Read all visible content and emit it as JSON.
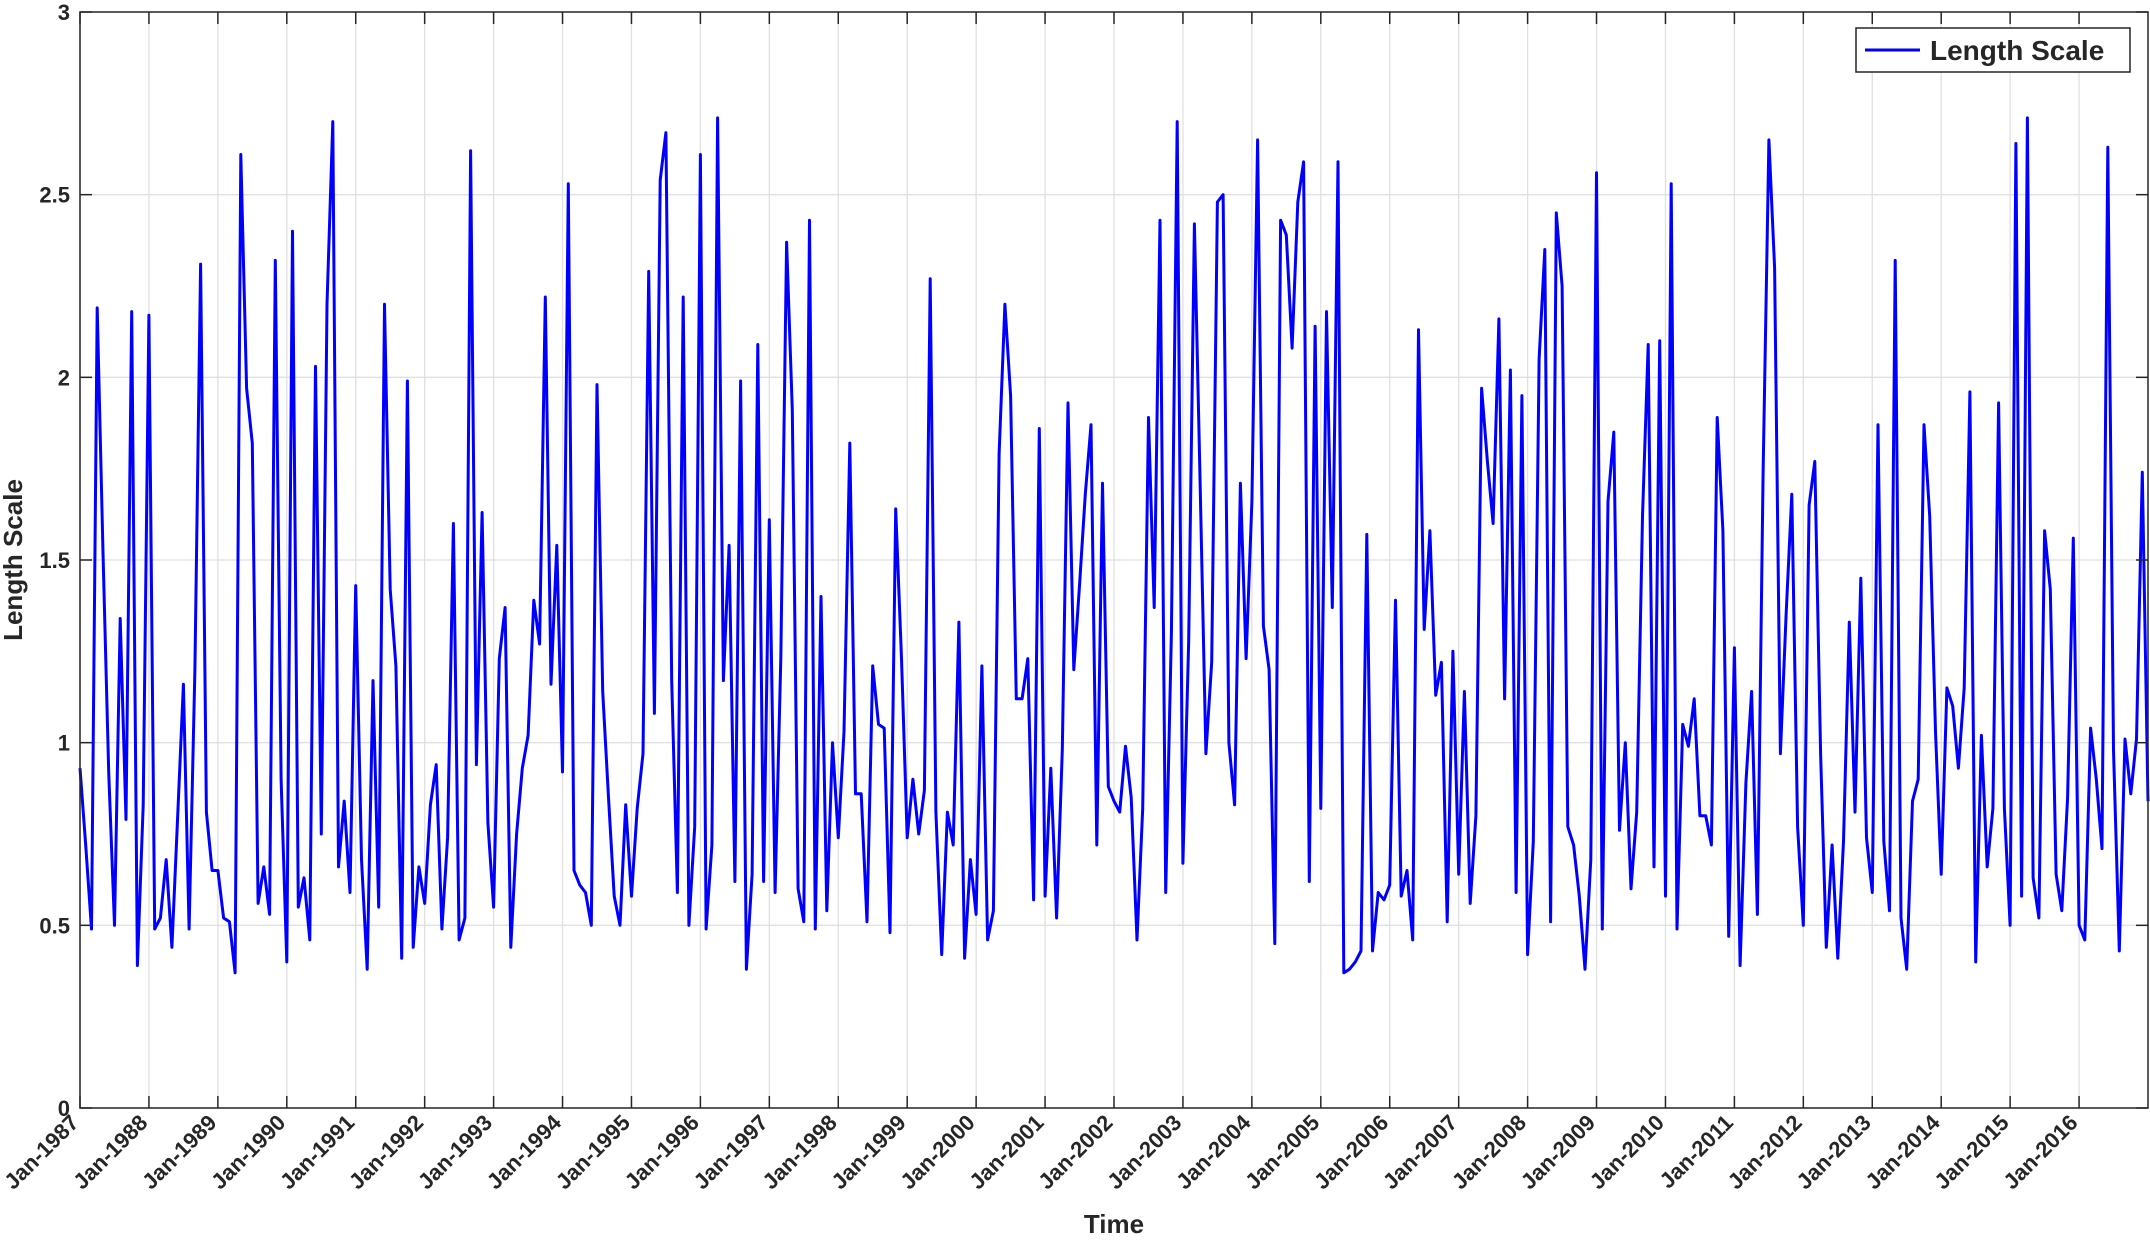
{
  "chart_data": {
    "type": "line",
    "xlabel": "Time",
    "ylabel": "Length Scale",
    "x_tick_labels": [
      "Jan-1987",
      "Jan-1988",
      "Jan-1989",
      "Jan-1990",
      "Jan-1991",
      "Jan-1992",
      "Jan-1993",
      "Jan-1994",
      "Jan-1995",
      "Jan-1996",
      "Jan-1997",
      "Jan-1998",
      "Jan-1999",
      "Jan-2000",
      "Jan-2001",
      "Jan-2002",
      "Jan-2003",
      "Jan-2004",
      "Jan-2005",
      "Jan-2006",
      "Jan-2007",
      "Jan-2008",
      "Jan-2009",
      "Jan-2010",
      "Jan-2011",
      "Jan-2012",
      "Jan-2013",
      "Jan-2014",
      "Jan-2015",
      "Jan-2016"
    ],
    "y_tick_labels": [
      "0",
      "0.5",
      "1",
      "1.5",
      "2",
      "2.5",
      "3"
    ],
    "ylim": [
      0,
      3
    ],
    "xlim": [
      "1987-01",
      "2016-12"
    ],
    "grid": true,
    "legend_position": "top-right",
    "series": [
      {
        "name": "Length Scale",
        "color": "#0000ff",
        "x_start": "1987-01",
        "x_step": "1 month",
        "values": [
          0.93,
          0.72,
          0.49,
          2.19,
          1.52,
          0.92,
          0.5,
          1.34,
          0.79,
          2.18,
          0.39,
          0.83,
          2.17,
          0.49,
          0.52,
          0.68,
          0.44,
          0.8,
          1.16,
          0.49,
          1.2,
          2.31,
          0.81,
          0.65,
          0.65,
          0.52,
          0.51,
          0.37,
          2.61,
          1.97,
          1.82,
          0.56,
          0.66,
          0.53,
          2.32,
          0.9,
          0.4,
          2.4,
          0.55,
          0.63,
          0.46,
          2.03,
          0.75,
          2.2,
          2.7,
          0.66,
          0.84,
          0.59,
          1.43,
          0.68,
          0.38,
          1.17,
          0.55,
          2.2,
          1.42,
          1.21,
          0.41,
          1.99,
          0.44,
          0.66,
          0.56,
          0.83,
          0.94,
          0.49,
          0.74,
          1.6,
          0.46,
          0.52,
          2.62,
          0.94,
          1.63,
          0.78,
          0.55,
          1.23,
          1.37,
          0.44,
          0.75,
          0.93,
          1.02,
          1.39,
          1.27,
          2.22,
          1.16,
          1.54,
          0.92,
          2.53,
          0.65,
          0.61,
          0.59,
          0.5,
          1.98,
          1.14,
          0.85,
          0.58,
          0.5,
          0.83,
          0.58,
          0.82,
          0.97,
          2.29,
          1.08,
          2.54,
          2.67,
          1.17,
          0.59,
          2.22,
          0.5,
          0.77,
          2.61,
          0.49,
          0.72,
          2.71,
          1.17,
          1.54,
          0.62,
          1.99,
          0.38,
          0.64,
          2.09,
          0.62,
          1.61,
          0.59,
          1.23,
          2.37,
          1.91,
          0.6,
          0.51,
          2.43,
          0.49,
          1.4,
          0.54,
          1.0,
          0.74,
          1.03,
          1.82,
          0.86,
          0.86,
          0.51,
          1.21,
          1.05,
          1.04,
          0.48,
          1.64,
          1.23,
          0.74,
          0.9,
          0.75,
          0.87,
          2.27,
          0.81,
          0.42,
          0.81,
          0.72,
          1.33,
          0.41,
          0.68,
          0.53,
          1.21,
          0.46,
          0.54,
          1.79,
          2.2,
          1.95,
          1.12,
          1.12,
          1.23,
          0.57,
          1.86,
          0.58,
          0.93,
          0.52,
          0.98,
          1.93,
          1.2,
          1.43,
          1.68,
          1.87,
          0.72,
          1.71,
          0.88,
          0.84,
          0.81,
          0.99,
          0.85,
          0.46,
          0.82,
          1.89,
          1.37,
          2.43,
          0.59,
          1.3,
          2.7,
          0.67,
          1.28,
          2.42,
          1.7,
          0.97,
          1.22,
          2.48,
          2.5,
          1.0,
          0.83,
          1.71,
          1.23,
          1.66,
          2.65,
          1.32,
          1.2,
          0.45,
          2.43,
          2.39,
          2.08,
          2.48,
          2.59,
          0.62,
          2.14,
          0.82,
          2.18,
          1.37,
          2.59,
          0.37,
          0.38,
          0.4,
          0.43,
          1.57,
          0.43,
          0.59,
          0.57,
          0.61,
          1.39,
          0.58,
          0.65,
          0.46,
          2.13,
          1.31,
          1.58,
          1.13,
          1.22,
          0.51,
          1.25,
          0.64,
          1.14,
          0.56,
          0.8,
          1.97,
          1.77,
          1.6,
          2.16,
          1.12,
          2.02,
          0.59,
          1.95,
          0.42,
          0.73,
          2.05,
          2.35,
          0.51,
          2.45,
          2.25,
          0.77,
          0.72,
          0.58,
          0.38,
          0.68,
          2.56,
          0.49,
          1.66,
          1.85,
          0.76,
          1.0,
          0.6,
          0.81,
          1.62,
          2.09,
          0.66,
          2.1,
          0.58,
          2.53,
          0.49,
          1.05,
          0.99,
          1.12,
          0.8,
          0.8,
          0.72,
          1.89,
          1.58,
          0.47,
          1.26,
          0.39,
          0.89,
          1.14,
          0.53,
          1.74,
          2.65,
          2.3,
          0.97,
          1.35,
          1.68,
          0.77,
          0.5,
          1.65,
          1.77,
          0.97,
          0.44,
          0.72,
          0.41,
          0.73,
          1.33,
          0.81,
          1.45,
          0.74,
          0.59,
          1.87,
          0.73,
          0.54,
          2.32,
          0.52,
          0.38,
          0.84,
          0.9,
          1.87,
          1.62,
          1.03,
          0.64,
          1.15,
          1.1,
          0.93,
          1.15,
          1.96,
          0.4,
          1.02,
          0.66,
          0.82,
          1.93,
          0.82,
          0.5,
          2.64,
          0.58,
          2.71,
          0.63,
          0.52,
          1.58,
          1.42,
          0.64,
          0.54,
          0.85,
          1.56,
          0.5,
          0.46,
          1.04,
          0.9,
          0.71,
          2.63,
          0.98,
          0.43,
          1.01,
          0.86,
          1.01,
          1.74,
          0.84
        ]
      }
    ]
  }
}
